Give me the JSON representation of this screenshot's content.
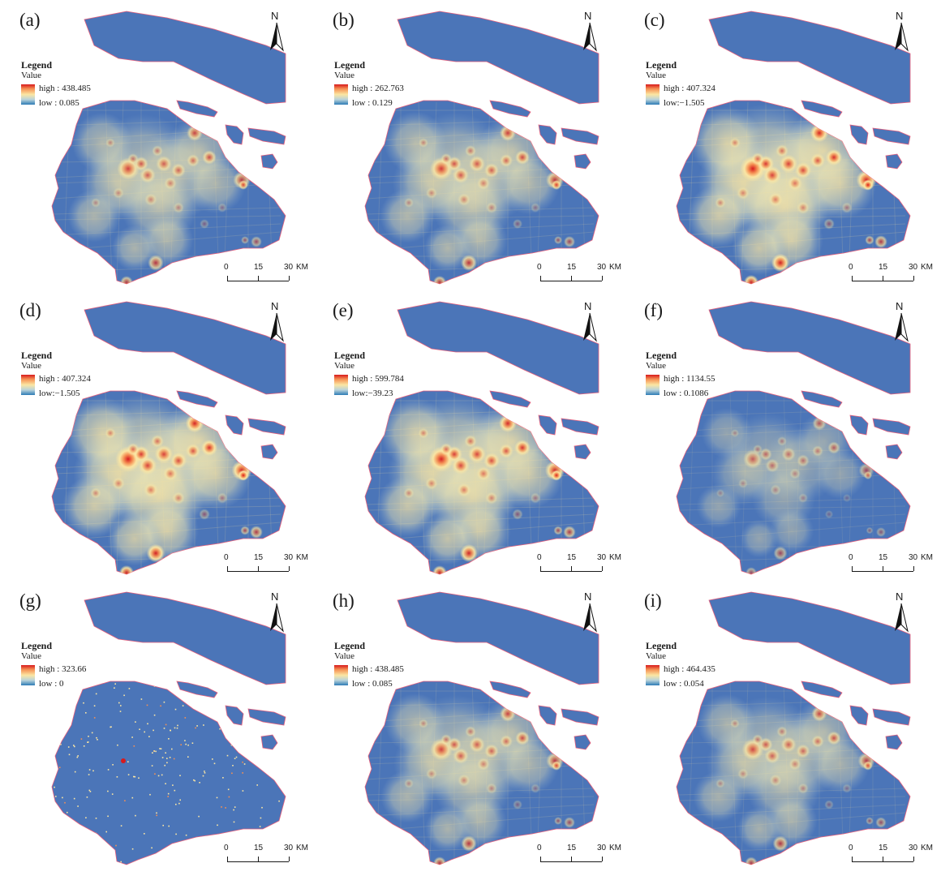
{
  "colors": {
    "low": "#2c7bb6",
    "base": "#4b75b8",
    "mid": "#fbe6a3",
    "warm": "#f59053",
    "high": "#d7191c",
    "coast": "#e8607c"
  },
  "legend": {
    "title": "Legend",
    "subtitle": "Value"
  },
  "north_label": "N",
  "scale": {
    "ticks": [
      "0",
      "15",
      "30"
    ],
    "unit": "KM"
  },
  "panels": [
    {
      "label": "(a)",
      "high": "high : 438.485",
      "low": "low : 0.085",
      "intensity": 0.55,
      "sparse": false
    },
    {
      "label": "(b)",
      "high": "high : 262.763",
      "low": "low : 0.129",
      "intensity": 0.6,
      "sparse": false
    },
    {
      "label": "(c)",
      "high": "high : 407.324",
      "low": "low:−1.505",
      "intensity": 0.85,
      "sparse": false
    },
    {
      "label": "(d)",
      "high": "high : 407.324",
      "low": "low:−1.505",
      "intensity": 0.85,
      "sparse": false
    },
    {
      "label": "(e)",
      "high": "high : 599.784",
      "low": "low:−39.23",
      "intensity": 0.8,
      "sparse": false
    },
    {
      "label": "(f)",
      "high": "high : 1134.55",
      "low": "low : 0.1086",
      "intensity": 0.3,
      "sparse": false
    },
    {
      "label": "(g)",
      "high": "high : 323.66",
      "low": "low : 0",
      "intensity": 0.1,
      "sparse": true
    },
    {
      "label": "(h)",
      "high": "high : 438.485",
      "low": "low : 0.085",
      "intensity": 0.55,
      "sparse": false
    },
    {
      "label": "(i)",
      "high": "high : 464.435",
      "low": "low : 0.054",
      "intensity": 0.5,
      "sparse": false
    }
  ]
}
